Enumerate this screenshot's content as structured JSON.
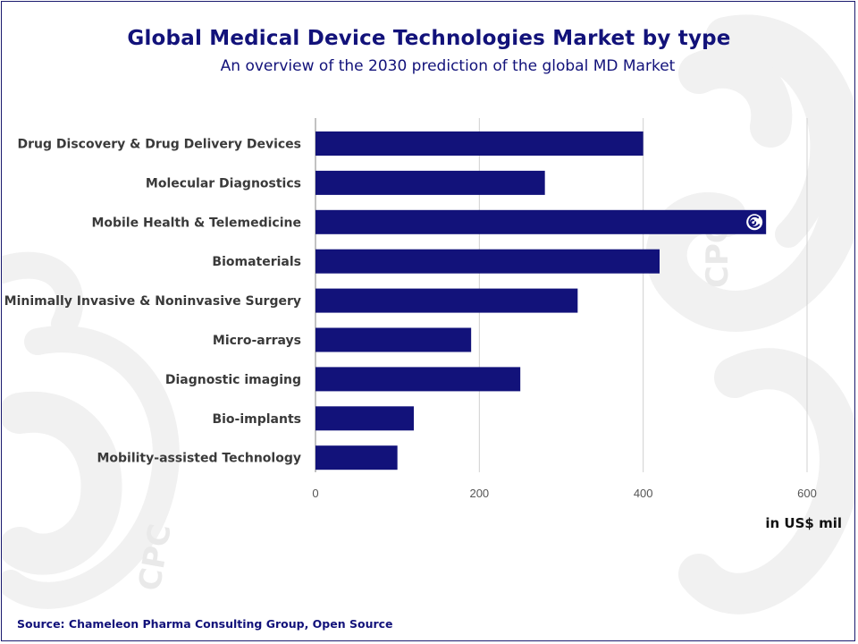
{
  "page": {
    "title": "Global Medical Device Technologies Market by type",
    "subtitle": "An overview of the 2030 prediction of the global MD Market",
    "unit_label": "in US$ mil",
    "source": "Source:  Chameleon Pharma Consulting Group, Open Source",
    "watermark_text": "CPC"
  },
  "colors": {
    "bar": "#12127a",
    "title": "#12127a",
    "grid": "#d0d0d0",
    "watermark": "#f1f1f1"
  },
  "chart_data": {
    "type": "bar",
    "orientation": "horizontal",
    "title": "Global Medical Device Technologies Market by type",
    "subtitle": "An overview of the 2030 prediction of the global MD Market",
    "xlabel": "in US$ mil",
    "ylabel": "",
    "xlim": [
      0,
      600
    ],
    "xticks": [
      0,
      200,
      400,
      600
    ],
    "grid": true,
    "legend": "none",
    "categories": [
      "Drug Discovery & Drug Delivery Devices",
      "Molecular Diagnostics",
      "Mobile Health & Telemedicine",
      "Biomaterials",
      "Minimally Invasive & Noninvasive Surgery",
      "Micro-arrays",
      "Diagnostic imaging",
      "Bio-implants",
      "Mobility-assisted Technology"
    ],
    "values": [
      400,
      280,
      550,
      420,
      320,
      190,
      250,
      120,
      100
    ]
  }
}
